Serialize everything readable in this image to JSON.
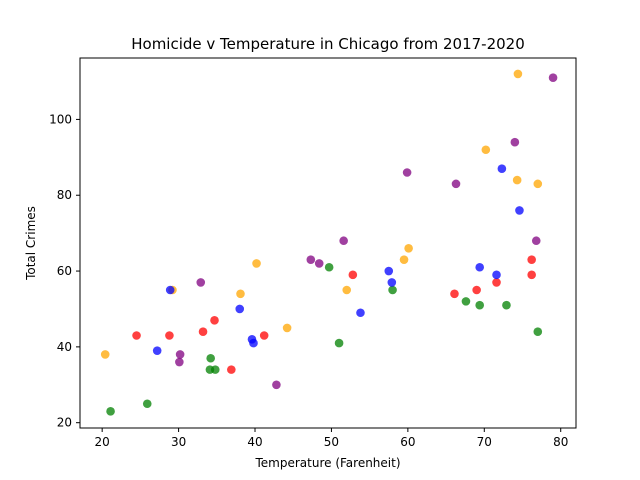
{
  "chart_data": {
    "type": "scatter",
    "title": "Homicide v Temperature in Chicago from 2017-2020",
    "xlabel": "Temperature (Farenheit)",
    "ylabel": "Total Crimes",
    "xlim": [
      17.1,
      82.0
    ],
    "ylim": [
      18.6,
      116.2
    ],
    "xticks": [
      20,
      30,
      40,
      50,
      60,
      70,
      80
    ],
    "yticks": [
      20,
      40,
      60,
      80,
      100
    ],
    "grid": false,
    "series": [
      {
        "color": "#ff0000",
        "points": [
          [
            24.5,
            43
          ],
          [
            28.8,
            43
          ],
          [
            33.2,
            44
          ],
          [
            34.7,
            47
          ],
          [
            36.9,
            34
          ],
          [
            41.2,
            43
          ],
          [
            52.8,
            59
          ],
          [
            66.1,
            54
          ],
          [
            69.0,
            55
          ],
          [
            71.6,
            57
          ],
          [
            76.2,
            63
          ],
          [
            76.2,
            59
          ]
        ]
      },
      {
        "color": "#ffa500",
        "points": [
          [
            20.4,
            38
          ],
          [
            29.2,
            55
          ],
          [
            38.1,
            54
          ],
          [
            40.2,
            62
          ],
          [
            44.2,
            45
          ],
          [
            52.0,
            55
          ],
          [
            59.5,
            63
          ],
          [
            60.1,
            66
          ],
          [
            70.2,
            92
          ],
          [
            74.3,
            84
          ],
          [
            74.4,
            112
          ],
          [
            77.0,
            83
          ]
        ]
      },
      {
        "color": "#008000",
        "points": [
          [
            21.1,
            23
          ],
          [
            25.9,
            25
          ],
          [
            34.1,
            34
          ],
          [
            34.2,
            37
          ],
          [
            34.8,
            34
          ],
          [
            49.7,
            61
          ],
          [
            51.0,
            41
          ],
          [
            58.0,
            55
          ],
          [
            67.6,
            52
          ],
          [
            69.4,
            51
          ],
          [
            72.9,
            51
          ],
          [
            77.0,
            44
          ]
        ]
      },
      {
        "color": "#0000ff",
        "points": [
          [
            27.2,
            39
          ],
          [
            28.9,
            55
          ],
          [
            38.0,
            50
          ],
          [
            39.6,
            42
          ],
          [
            39.8,
            41
          ],
          [
            53.8,
            49
          ],
          [
            57.5,
            60
          ],
          [
            57.9,
            57
          ],
          [
            69.4,
            61
          ],
          [
            71.6,
            59
          ],
          [
            72.3,
            87
          ],
          [
            74.6,
            76
          ]
        ]
      },
      {
        "color": "#800080",
        "points": [
          [
            30.1,
            36
          ],
          [
            30.2,
            38
          ],
          [
            32.9,
            57
          ],
          [
            42.8,
            30
          ],
          [
            47.3,
            63
          ],
          [
            48.4,
            62
          ],
          [
            51.6,
            68
          ],
          [
            59.9,
            86
          ],
          [
            66.3,
            83
          ],
          [
            74.0,
            94
          ],
          [
            76.8,
            68
          ],
          [
            79.0,
            111
          ]
        ]
      }
    ]
  }
}
